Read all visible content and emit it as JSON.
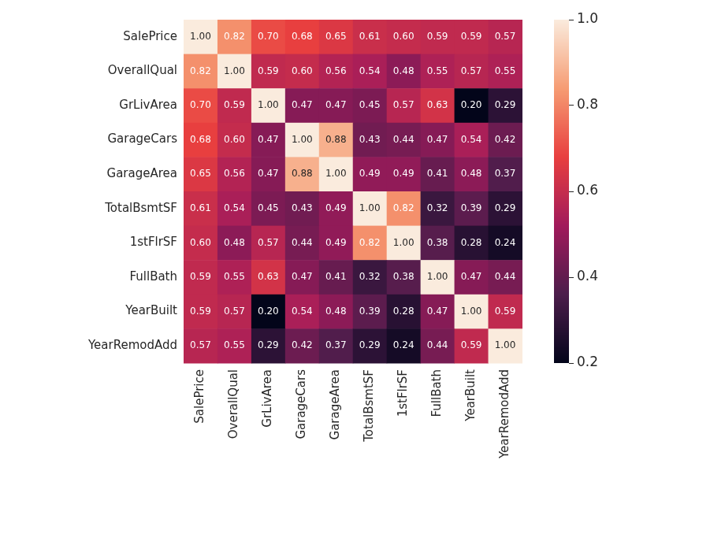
{
  "chart_data": {
    "type": "heatmap",
    "x_categories": [
      "SalePrice",
      "OverallQual",
      "GrLivArea",
      "GarageCars",
      "GarageArea",
      "TotalBsmtSF",
      "1stFlrSF",
      "FullBath",
      "YearBuilt",
      "YearRemodAdd"
    ],
    "y_categories": [
      "SalePrice",
      "OverallQual",
      "GrLivArea",
      "GarageCars",
      "GarageArea",
      "TotalBsmtSF",
      "1stFlrSF",
      "FullBath",
      "YearBuilt",
      "YearRemodAdd"
    ],
    "values": [
      [
        1,
        0.82,
        0.7,
        0.68,
        0.65,
        0.61,
        0.6,
        0.59,
        0.59,
        0.57
      ],
      [
        0.82,
        1,
        0.59,
        0.6,
        0.56,
        0.54,
        0.48,
        0.55,
        0.57,
        0.55
      ],
      [
        0.7,
        0.59,
        1,
        0.47,
        0.47,
        0.45,
        0.57,
        0.63,
        0.2,
        0.29
      ],
      [
        0.68,
        0.6,
        0.47,
        1,
        0.88,
        0.43,
        0.44,
        0.47,
        0.54,
        0.42
      ],
      [
        0.65,
        0.56,
        0.47,
        0.88,
        1,
        0.49,
        0.49,
        0.41,
        0.48,
        0.37
      ],
      [
        0.61,
        0.54,
        0.45,
        0.43,
        0.49,
        1,
        0.82,
        0.32,
        0.39,
        0.29
      ],
      [
        0.6,
        0.48,
        0.57,
        0.44,
        0.49,
        0.82,
        1,
        0.38,
        0.28,
        0.24
      ],
      [
        0.59,
        0.55,
        0.63,
        0.47,
        0.41,
        0.32,
        0.38,
        1,
        0.47,
        0.44
      ],
      [
        0.59,
        0.57,
        0.2,
        0.54,
        0.48,
        0.39,
        0.28,
        0.47,
        1,
        0.59
      ],
      [
        0.57,
        0.55,
        0.29,
        0.42,
        0.37,
        0.29,
        0.24,
        0.44,
        0.59,
        1
      ]
    ],
    "value_labels": [
      [
        "1.00",
        "0.82",
        "0.70",
        "0.68",
        "0.65",
        "0.61",
        "0.60",
        "0.59",
        "0.59",
        "0.57"
      ],
      [
        "0.82",
        "1.00",
        "0.59",
        "0.60",
        "0.56",
        "0.54",
        "0.48",
        "0.55",
        "0.57",
        "0.55"
      ],
      [
        "0.70",
        "0.59",
        "1.00",
        "0.47",
        "0.47",
        "0.45",
        "0.57",
        "0.63",
        "0.20",
        "0.29"
      ],
      [
        "0.68",
        "0.60",
        "0.47",
        "1.00",
        "0.88",
        "0.43",
        "0.44",
        "0.47",
        "0.54",
        "0.42"
      ],
      [
        "0.65",
        "0.56",
        "0.47",
        "0.88",
        "1.00",
        "0.49",
        "0.49",
        "0.41",
        "0.48",
        "0.37"
      ],
      [
        "0.61",
        "0.54",
        "0.45",
        "0.43",
        "0.49",
        "1.00",
        "0.82",
        "0.32",
        "0.39",
        "0.29"
      ],
      [
        "0.60",
        "0.48",
        "0.57",
        "0.44",
        "0.49",
        "0.82",
        "1.00",
        "0.38",
        "0.28",
        "0.24"
      ],
      [
        "0.59",
        "0.55",
        "0.63",
        "0.47",
        "0.41",
        "0.32",
        "0.38",
        "1.00",
        "0.47",
        "0.44"
      ],
      [
        "0.59",
        "0.57",
        "0.20",
        "0.54",
        "0.48",
        "0.39",
        "0.28",
        "0.47",
        "1.00",
        "0.59"
      ],
      [
        "0.57",
        "0.55",
        "0.29",
        "0.42",
        "0.37",
        "0.29",
        "0.24",
        "0.44",
        "0.59",
        "1.00"
      ]
    ],
    "data_labels": true,
    "grid": false,
    "colorbar": {
      "range": [
        0.2,
        1
      ],
      "ticks": [
        0.2,
        0.4,
        0.6,
        0.8,
        {
          "value": 1,
          "label": "1.0"
        }
      ]
    }
  }
}
